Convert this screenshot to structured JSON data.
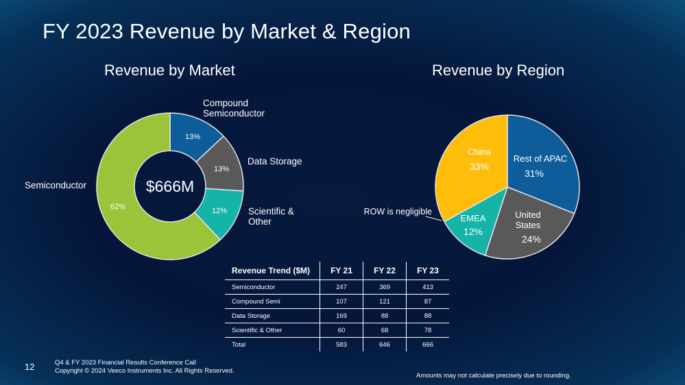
{
  "page": {
    "title": "FY 2023 Revenue by Market & Region",
    "page_number": "12",
    "footer_line1": "Q4 & FY 2023 Financial Results Conference Call",
    "footer_line2": "Copyright © 2024 Veeco Instruments Inc. All Rights Reserved.",
    "footnote": "Amounts may not calculate precisely due to rounding."
  },
  "chart_data": [
    {
      "type": "pie",
      "variant": "donut",
      "title": "Revenue by Market",
      "center_label": "$666M",
      "slices": [
        {
          "label": "Compound Semiconductor",
          "value": 13,
          "display": "13%",
          "color": "#0e5d9a"
        },
        {
          "label": "Data Storage",
          "value": 13,
          "display": "13%",
          "color": "#595959"
        },
        {
          "label": "Scientific & Other",
          "value": 12,
          "display": "12%",
          "color": "#16b3a8"
        },
        {
          "label": "Semiconductor",
          "value": 62,
          "display": "62%",
          "color": "#9cc43a"
        }
      ]
    },
    {
      "type": "pie",
      "title": "Revenue by Region",
      "slices": [
        {
          "label": "Rest of APAC",
          "value": 31,
          "display": "31%",
          "color": "#0e5d9a"
        },
        {
          "label": "United States",
          "value": 24,
          "display": "24%",
          "color": "#595959"
        },
        {
          "label": "EMEA",
          "value": 12,
          "display": "12%",
          "color": "#16b3a8"
        },
        {
          "label": "China",
          "value": 33,
          "display": "33%",
          "color": "#fdbd0a"
        }
      ],
      "annotation": "ROW is negligible"
    },
    {
      "type": "table",
      "columns": [
        "Revenue Trend ($M)",
        "FY 21",
        "FY 22",
        "FY 23"
      ],
      "rows": [
        [
          "Semiconductor",
          "247",
          "369",
          "413"
        ],
        [
          "Compound Semi",
          "107",
          "121",
          "87"
        ],
        [
          "Data Storage",
          "169",
          "88",
          "88"
        ],
        [
          "Scientific & Other",
          "60",
          "68",
          "78"
        ],
        [
          "Total",
          "583",
          "646",
          "666"
        ]
      ]
    }
  ]
}
